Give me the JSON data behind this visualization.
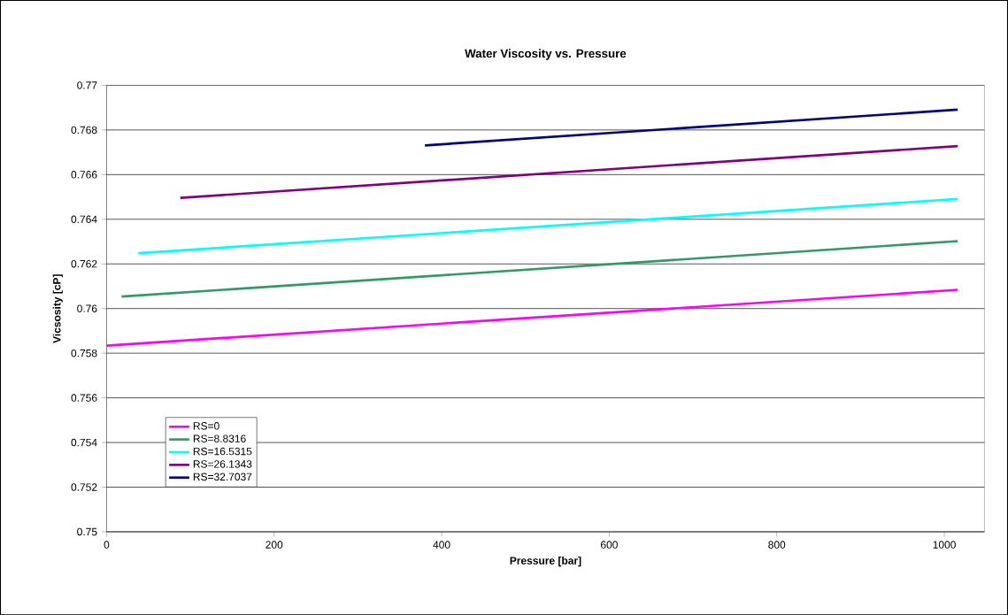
{
  "chart_data": {
    "type": "line",
    "title": "Water Viscosity vs. Pressure",
    "xlabel": "Pressure [bar]",
    "ylabel": "Vicsosity [cP]",
    "xlim": [
      0,
      1048
    ],
    "xticks": [
      0,
      200,
      400,
      600,
      800,
      1000
    ],
    "ylim": [
      0.75,
      0.77
    ],
    "yticks": [
      0.75,
      0.752,
      0.754,
      0.756,
      0.758,
      0.76,
      0.762,
      0.764,
      0.766,
      0.768,
      0.77
    ],
    "grid": "y",
    "legend": "bottom left",
    "marker": "none",
    "line_style": "solid",
    "series": [
      {
        "name": "RS=0",
        "color": "#ff00ff",
        "x": [
          0,
          1016
        ],
        "values": [
          0.75834,
          0.76084
        ]
      },
      {
        "name": "RS=8.8316",
        "color": "#339966",
        "x": [
          18,
          1016
        ],
        "values": [
          0.76054,
          0.76302
        ]
      },
      {
        "name": "RS=16.5315",
        "color": "#00ffff",
        "x": [
          38,
          1016
        ],
        "values": [
          0.76248,
          0.76491
        ]
      },
      {
        "name": "RS=26.1343",
        "color": "#800080",
        "x": [
          88,
          1016
        ],
        "values": [
          0.76496,
          0.76728
        ]
      },
      {
        "name": "RS=32.7037",
        "color": "#000080",
        "x": [
          380,
          1016
        ],
        "values": [
          0.76731,
          0.76891
        ]
      }
    ]
  }
}
